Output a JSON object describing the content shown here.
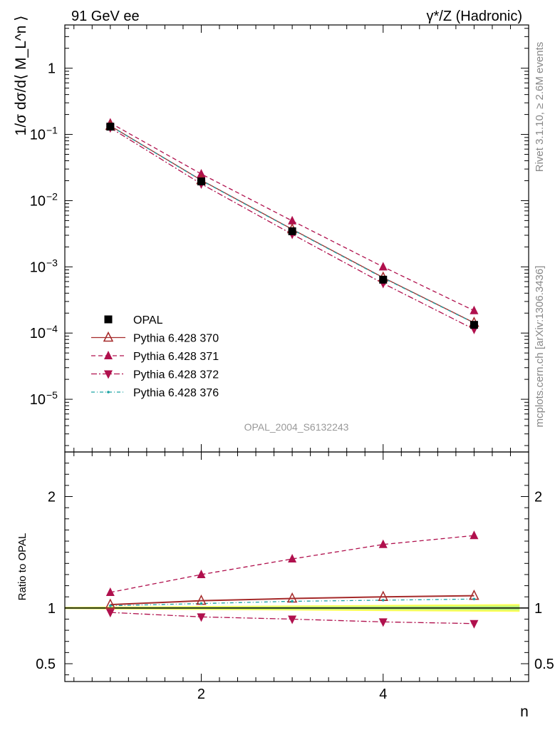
{
  "header": {
    "left": "91 GeV ee",
    "right": "γ*/Z (Hadronic)"
  },
  "side": {
    "rivet": "Rivet 3.1.10, ≥ 2.6M events",
    "mcplots": "mcplots.cern.ch [arXiv:1306.3436]"
  },
  "watermark": "OPAL_2004_S6132243",
  "chart_data": [
    {
      "type": "line",
      "panel": "main",
      "title": "91 GeV ee — γ*/Z (Hadronic)",
      "ylabel": "1/σ dσ/d⟨ M_L^n ⟩",
      "xlabel": "n",
      "yscale": "log",
      "xlim": [
        0.5,
        5.6
      ],
      "ylim": [
        1.6e-06,
        4.5
      ],
      "y_ticks": [
        {
          "value": 1e-05,
          "label": "10",
          "exp": "−5"
        },
        {
          "value": 0.0001,
          "label": "10",
          "exp": "−4"
        },
        {
          "value": 0.001,
          "label": "10",
          "exp": "−3"
        },
        {
          "value": 0.01,
          "label": "10",
          "exp": "−2"
        },
        {
          "value": 0.1,
          "label": "10",
          "exp": "−1"
        },
        {
          "value": 1,
          "label": "1",
          "exp": ""
        }
      ],
      "x": [
        1,
        2,
        3,
        4,
        5
      ],
      "series": [
        {
          "name": "OPAL",
          "key": "opal",
          "values": [
            0.131,
            0.0195,
            0.00345,
            0.00064,
            0.000133
          ],
          "color": "#000000",
          "marker": "square",
          "dash": "none"
        },
        {
          "name": "Pythia 6.428 370",
          "key": "p370",
          "values": [
            0.135,
            0.0204,
            0.0037,
            0.00069,
            0.000143
          ],
          "color": "#a52a2a",
          "marker": "triangle-open",
          "dash": "solid"
        },
        {
          "name": "Pythia 6.428 371",
          "key": "p371",
          "values": [
            0.149,
            0.0253,
            0.00495,
            0.001,
            0.000218
          ],
          "color": "#b0104d",
          "marker": "triangle",
          "dash": "6,4"
        },
        {
          "name": "Pythia 6.428 372",
          "key": "p372",
          "values": [
            0.126,
            0.0179,
            0.00311,
            0.000562,
            0.000114
          ],
          "color": "#b0104d",
          "marker": "triangle-down",
          "dash": "8,3,2,3"
        },
        {
          "name": "Pythia 6.428 376",
          "key": "p376",
          "values": [
            0.134,
            0.0202,
            0.00366,
            0.00068,
            0.000142
          ],
          "color": "#1aa3a3",
          "marker": "dot",
          "dash": "5,3,1,3"
        }
      ]
    },
    {
      "type": "line",
      "panel": "ratio",
      "ylabel": "Ratio to OPAL",
      "xlabel": "n",
      "xlim": [
        0.5,
        5.6
      ],
      "ylim": [
        0.34,
        2.4
      ],
      "y_ticks": [
        {
          "value": 0.5,
          "label": "0.5"
        },
        {
          "value": 1,
          "label": "1"
        },
        {
          "value": 2,
          "label": "2"
        }
      ],
      "x_ticks": [
        {
          "value": 2,
          "label": "2"
        },
        {
          "value": 4,
          "label": "4"
        }
      ],
      "x": [
        1,
        2,
        3,
        4,
        5
      ],
      "band": {
        "x": [
          0.5,
          5.5
        ],
        "halfwidth": [
          0.01,
          0.035
        ],
        "colors": [
          "#ffff55",
          "#b8f27a"
        ]
      },
      "series": [
        {
          "name": "Pythia 6.428 370",
          "key": "p370",
          "values": [
            1.03,
            1.065,
            1.085,
            1.1,
            1.11
          ],
          "color": "#a52a2a",
          "marker": "triangle-open",
          "dash": "solid"
        },
        {
          "name": "Pythia 6.428 371",
          "key": "p371",
          "values": [
            1.14,
            1.3,
            1.44,
            1.57,
            1.65
          ],
          "color": "#b0104d",
          "marker": "triangle",
          "dash": "6,4"
        },
        {
          "name": "Pythia 6.428 372",
          "key": "p372",
          "values": [
            0.96,
            0.92,
            0.9,
            0.875,
            0.86
          ],
          "color": "#b0104d",
          "marker": "triangle-down",
          "dash": "8,3,2,3"
        },
        {
          "name": "Pythia 6.428 376",
          "key": "p376",
          "values": [
            1.02,
            1.04,
            1.06,
            1.07,
            1.08
          ],
          "color": "#1aa3a3",
          "marker": "dot",
          "dash": "5,3,1,3"
        }
      ]
    }
  ]
}
